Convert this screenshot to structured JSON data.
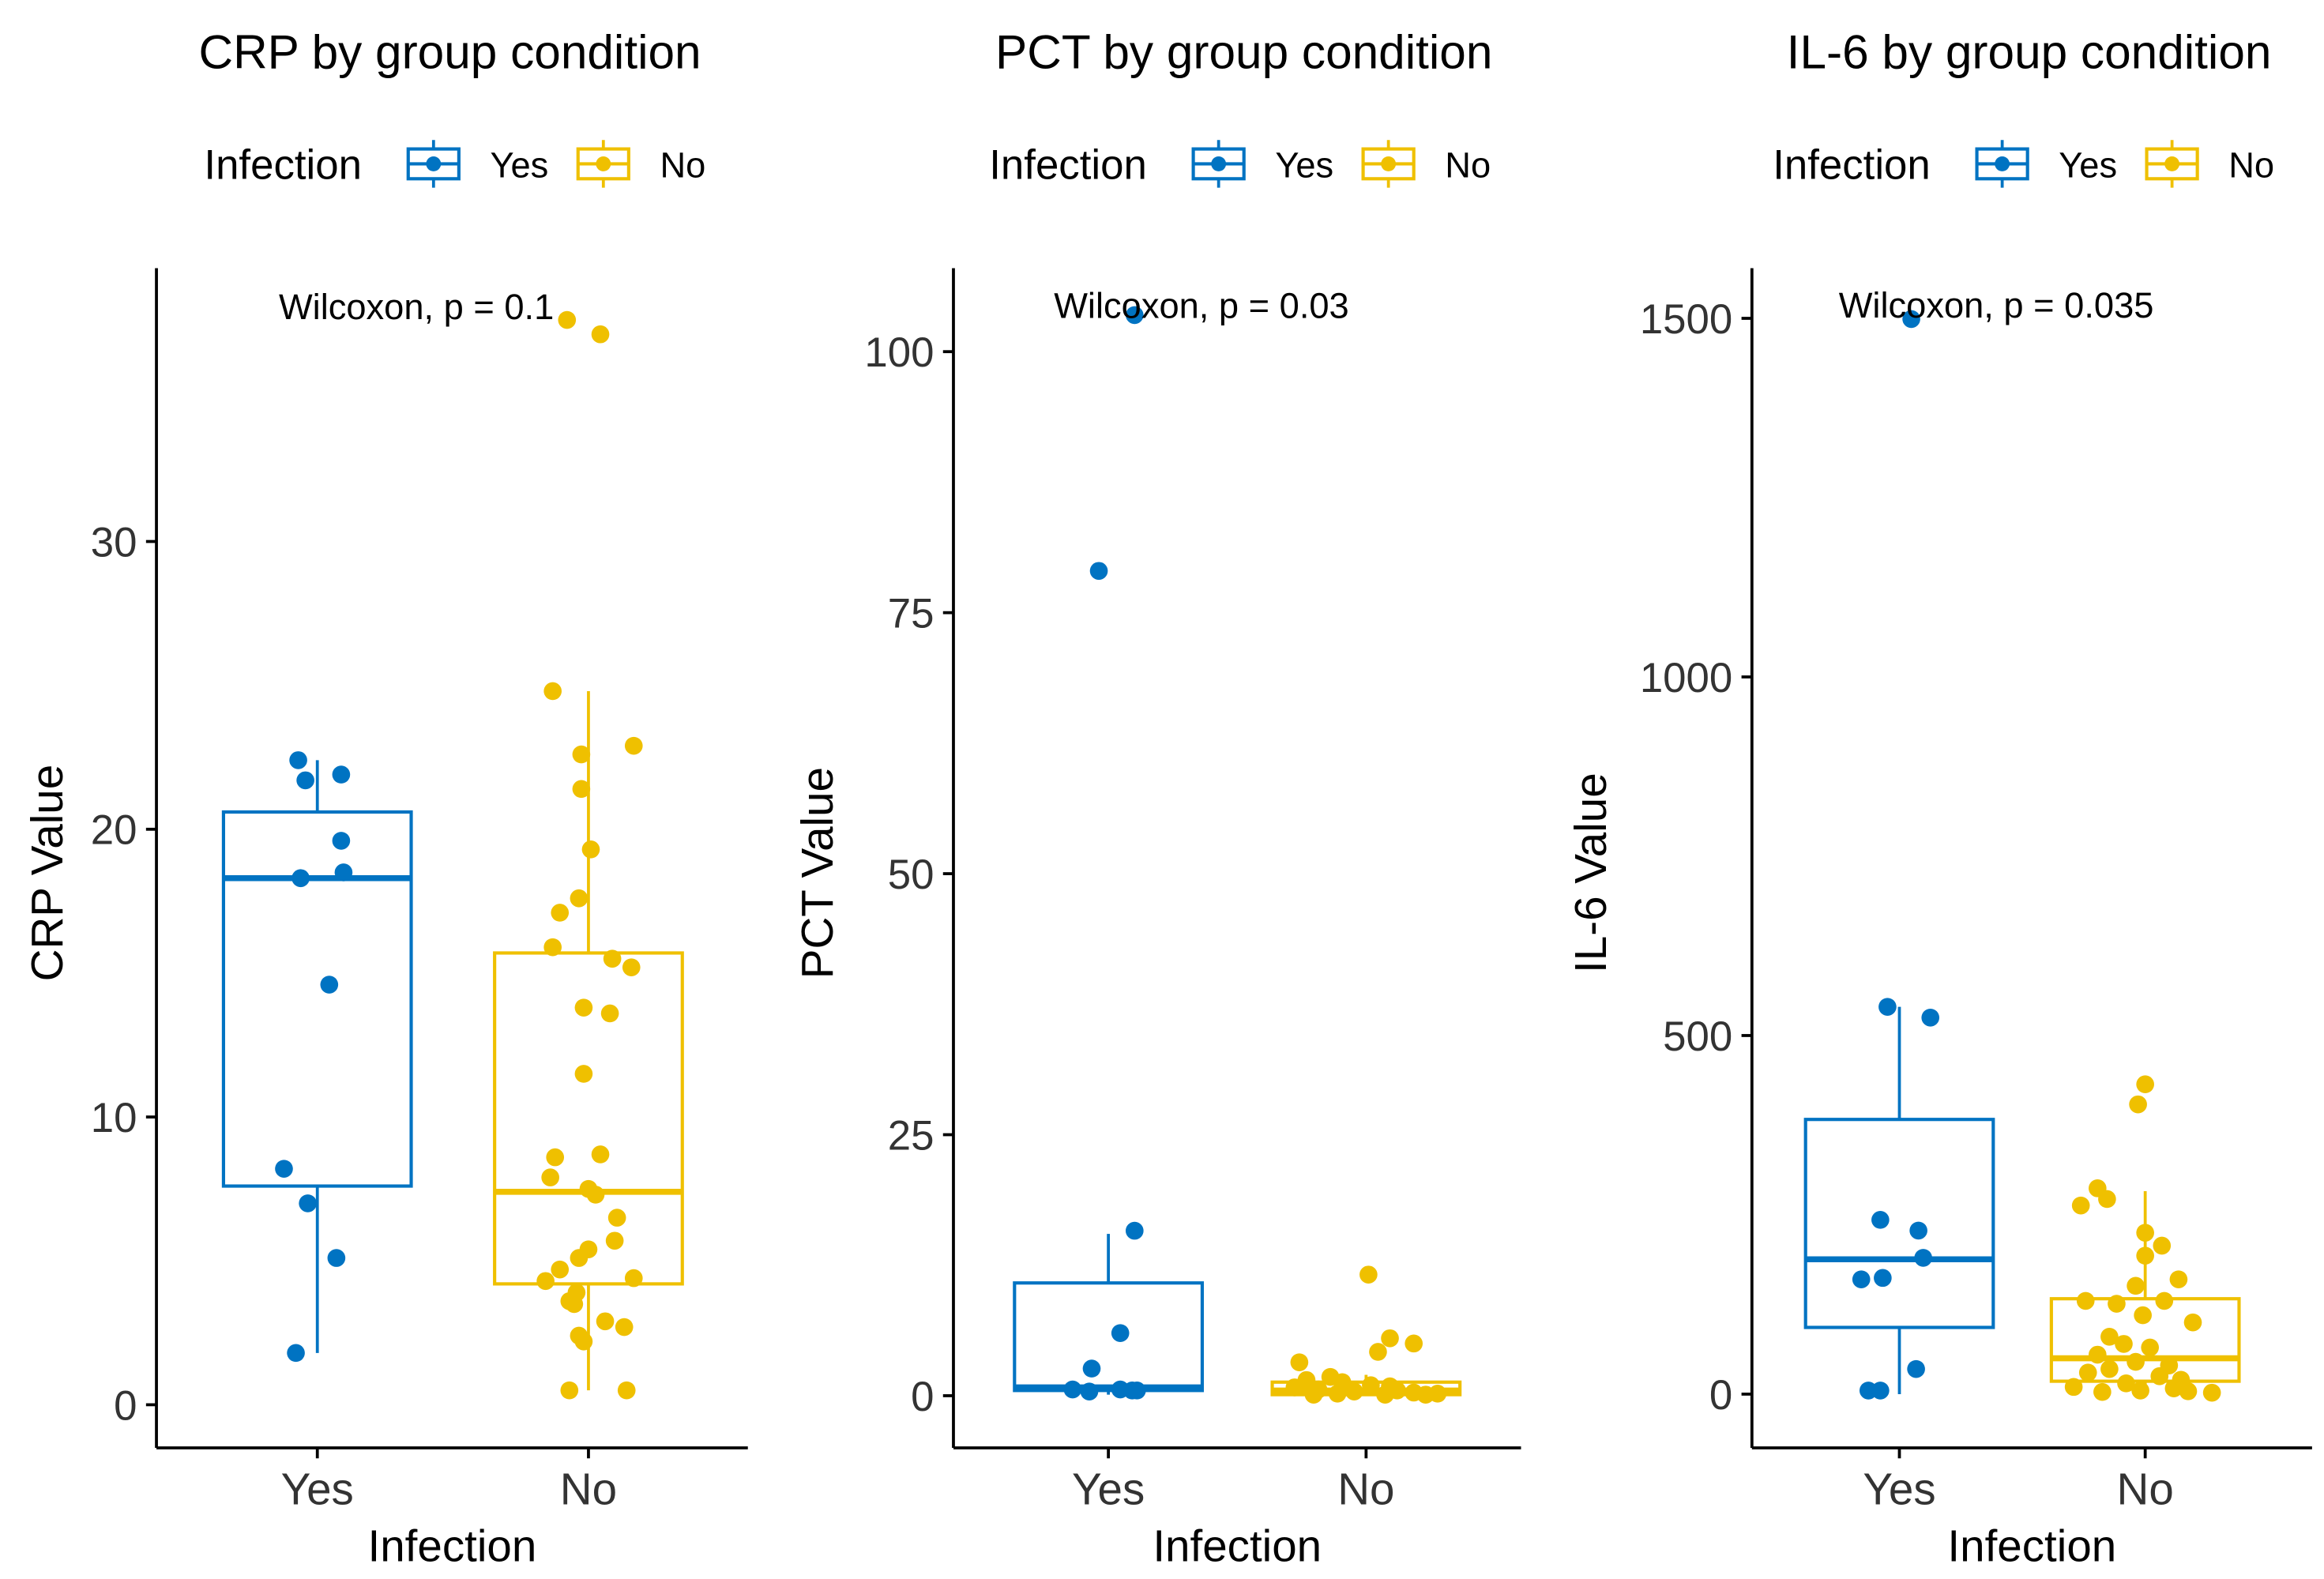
{
  "palette": {
    "yes": "#0073C2",
    "no": "#EFC000",
    "axis": "#000000"
  },
  "chart_data": [
    {
      "type": "box",
      "title": "CRP by group condition",
      "legend_title": "Infection",
      "legend_entries": [
        "Yes",
        "No"
      ],
      "legend_position": "top",
      "xlabel": "Infection",
      "ylabel": "CRP Value",
      "categories": [
        "Yes",
        "No"
      ],
      "ylim": [
        -1.5,
        39.5
      ],
      "yticks": [
        0,
        10,
        20,
        30
      ],
      "ytick_labels": [
        "0",
        "10",
        "20",
        "30"
      ],
      "annotation": "Wilcoxon, p = 0.1",
      "annotation_y": 38.2,
      "boxes": [
        {
          "q1": 7.6,
          "median": 18.3,
          "q3": 20.6,
          "whisker_low": 1.8,
          "whisker_high": 22.4
        },
        {
          "q1": 4.2,
          "median": 7.4,
          "q3": 15.7,
          "whisker_low": 0.5,
          "whisker_high": 24.8
        }
      ],
      "points": [
        [
          [
            -0.08,
            22.4
          ],
          [
            -0.05,
            21.7
          ],
          [
            0.1,
            21.9
          ],
          [
            0.1,
            19.6
          ],
          [
            -0.07,
            18.3
          ],
          [
            0.11,
            18.5
          ],
          [
            0.05,
            14.6
          ],
          [
            -0.14,
            8.2
          ],
          [
            -0.04,
            7.0
          ],
          [
            0.08,
            5.1
          ],
          [
            -0.09,
            1.8
          ]
        ],
        [
          [
            -0.15,
            24.8
          ],
          [
            0.19,
            22.9
          ],
          [
            -0.03,
            22.6
          ],
          [
            -0.03,
            21.4
          ],
          [
            0.01,
            19.3
          ],
          [
            -0.04,
            17.6
          ],
          [
            -0.12,
            17.1
          ],
          [
            -0.15,
            15.9
          ],
          [
            0.1,
            15.5
          ],
          [
            0.18,
            15.2
          ],
          [
            -0.02,
            13.8
          ],
          [
            0.09,
            13.6
          ],
          [
            -0.02,
            11.5
          ],
          [
            0.05,
            8.7
          ],
          [
            -0.14,
            8.6
          ],
          [
            -0.16,
            7.9
          ],
          [
            0.0,
            7.5
          ],
          [
            0.03,
            7.3
          ],
          [
            0.12,
            6.5
          ],
          [
            0.11,
            5.7
          ],
          [
            0.0,
            5.4
          ],
          [
            -0.04,
            5.1
          ],
          [
            -0.12,
            4.7
          ],
          [
            0.19,
            4.4
          ],
          [
            -0.18,
            4.3
          ],
          [
            -0.05,
            3.9
          ],
          [
            -0.08,
            3.6
          ],
          [
            -0.06,
            3.5
          ],
          [
            0.07,
            2.9
          ],
          [
            0.15,
            2.7
          ],
          [
            -0.04,
            2.4
          ],
          [
            -0.02,
            2.2
          ],
          [
            -0.08,
            0.5
          ],
          [
            0.16,
            0.5
          ],
          [
            -0.09,
            37.7
          ],
          [
            0.05,
            37.2
          ]
        ]
      ]
    },
    {
      "type": "box",
      "title": "PCT by group condition",
      "legend_title": "Infection",
      "legend_entries": [
        "Yes",
        "No"
      ],
      "legend_position": "top",
      "xlabel": "Infection",
      "ylabel": "PCT Value",
      "categories": [
        "Yes",
        "No"
      ],
      "ylim": [
        -5,
        108
      ],
      "yticks": [
        0,
        25,
        50,
        75,
        100
      ],
      "ytick_labels": [
        "0",
        "25",
        "50",
        "75",
        "100"
      ],
      "annotation": "Wilcoxon, p = 0.03",
      "annotation_y": 104.5,
      "boxes": [
        {
          "q1": 0.5,
          "median": 0.8,
          "q3": 10.8,
          "whisker_low": 0.1,
          "whisker_high": 15.5
        },
        {
          "q1": 0.1,
          "median": 0.5,
          "q3": 1.3,
          "whisker_low": 0.0,
          "whisker_high": 2.0
        }
      ],
      "points": [
        [
          [
            0.11,
            103.5
          ],
          [
            -0.04,
            79.0
          ],
          [
            0.11,
            15.8
          ],
          [
            0.05,
            6.0
          ],
          [
            -0.07,
            2.6
          ],
          [
            -0.15,
            0.6
          ],
          [
            -0.08,
            0.4
          ],
          [
            0.05,
            0.6
          ],
          [
            0.1,
            0.5
          ],
          [
            0.12,
            0.5
          ]
        ],
        [
          [
            0.01,
            11.6
          ],
          [
            0.1,
            5.5
          ],
          [
            0.2,
            5.0
          ],
          [
            0.05,
            4.2
          ],
          [
            -0.28,
            3.2
          ],
          [
            -0.15,
            1.8
          ],
          [
            -0.25,
            1.5
          ],
          [
            -0.1,
            1.3
          ],
          [
            0.02,
            1.0
          ],
          [
            0.1,
            0.9
          ],
          [
            -0.3,
            0.8
          ],
          [
            -0.2,
            0.6
          ],
          [
            0.13,
            0.5
          ],
          [
            -0.05,
            0.4
          ],
          [
            0.2,
            0.3
          ],
          [
            0.3,
            0.2
          ],
          [
            -0.12,
            0.2
          ],
          [
            0.25,
            0.1
          ],
          [
            -0.22,
            0.1
          ],
          [
            0.08,
            0.1
          ]
        ]
      ]
    },
    {
      "type": "box",
      "title": "IL-6 by group condition",
      "legend_title": "Infection",
      "legend_entries": [
        "Yes",
        "No"
      ],
      "legend_position": "top",
      "xlabel": "Infection",
      "ylabel": "IL-6 Value",
      "categories": [
        "Yes",
        "No"
      ],
      "ylim": [
        -75,
        1570
      ],
      "yticks": [
        0,
        500,
        1000,
        1500
      ],
      "ytick_labels": [
        "0",
        "500",
        "1000",
        "1500"
      ],
      "annotation": "Wilcoxon, p = 0.035",
      "annotation_y": 1520,
      "boxes": [
        {
          "q1": 93,
          "median": 188,
          "q3": 383,
          "whisker_low": 0,
          "whisker_high": 540
        },
        {
          "q1": 18,
          "median": 50,
          "q3": 133,
          "whisker_low": 0,
          "whisker_high": 283
        }
      ],
      "points": [
        [
          [
            0.05,
            1499
          ],
          [
            -0.05,
            540
          ],
          [
            0.13,
            525
          ],
          [
            -0.08,
            243
          ],
          [
            0.08,
            228
          ],
          [
            0.1,
            190
          ],
          [
            -0.16,
            160
          ],
          [
            -0.07,
            162
          ],
          [
            0.07,
            35
          ],
          [
            -0.13,
            5
          ],
          [
            -0.08,
            5
          ]
        ],
        [
          [
            0.0,
            432
          ],
          [
            -0.03,
            404
          ],
          [
            -0.2,
            287
          ],
          [
            -0.16,
            272
          ],
          [
            -0.27,
            263
          ],
          [
            0.0,
            225
          ],
          [
            0.07,
            207
          ],
          [
            0.0,
            193
          ],
          [
            0.14,
            160
          ],
          [
            -0.04,
            151
          ],
          [
            0.08,
            130
          ],
          [
            -0.25,
            130
          ],
          [
            -0.12,
            126
          ],
          [
            -0.01,
            110
          ],
          [
            0.2,
            100
          ],
          [
            -0.15,
            80
          ],
          [
            -0.09,
            70
          ],
          [
            0.02,
            65
          ],
          [
            -0.2,
            55
          ],
          [
            -0.04,
            45
          ],
          [
            0.1,
            40
          ],
          [
            -0.15,
            35
          ],
          [
            -0.24,
            30
          ],
          [
            0.06,
            25
          ],
          [
            0.15,
            20
          ],
          [
            -0.08,
            15
          ],
          [
            -0.3,
            10
          ],
          [
            0.12,
            8
          ],
          [
            -0.02,
            5
          ],
          [
            0.18,
            4
          ],
          [
            -0.18,
            3
          ],
          [
            0.28,
            2
          ]
        ]
      ]
    }
  ]
}
